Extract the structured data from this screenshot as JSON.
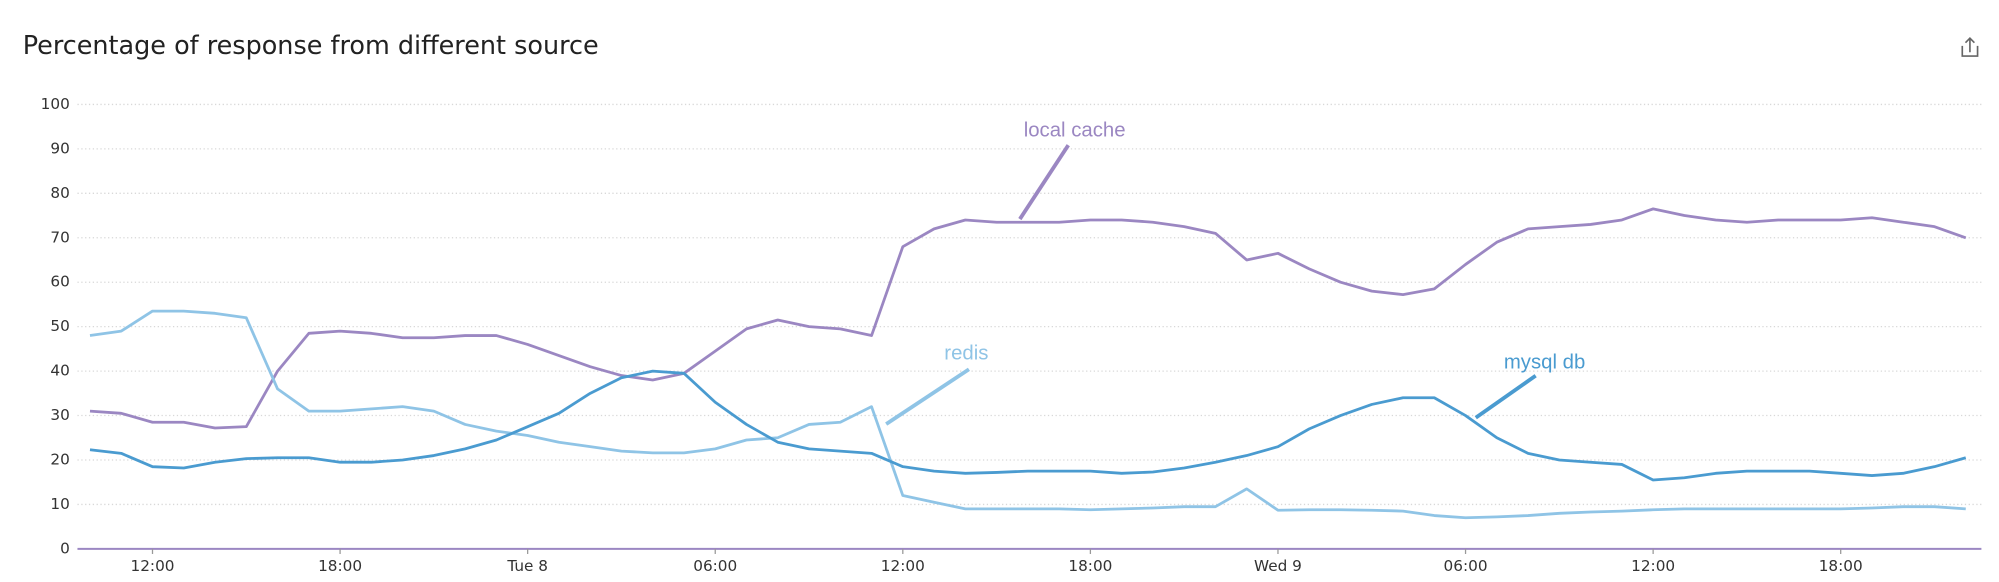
{
  "chart_data": {
    "type": "line",
    "title": "Percentage of response from different source",
    "x": [
      10,
      11,
      12,
      13,
      14,
      15,
      16,
      17,
      18,
      19,
      20,
      21,
      22,
      23,
      24,
      25,
      26,
      27,
      28,
      29,
      30,
      31,
      32,
      33,
      34,
      35,
      36,
      37,
      38,
      39,
      40,
      41,
      42,
      43,
      44,
      45,
      46,
      47,
      48,
      49,
      50,
      51,
      52,
      53,
      54,
      55,
      56,
      57,
      58,
      59,
      60,
      61,
      62,
      63,
      64,
      65,
      66,
      67,
      68,
      69,
      70
    ],
    "xlim": [
      9.6,
      70.5
    ],
    "xticks": [
      {
        "value": 12,
        "label": "12:00"
      },
      {
        "value": 18,
        "label": "18:00"
      },
      {
        "value": 24,
        "label": "Tue 8"
      },
      {
        "value": 30,
        "label": "06:00"
      },
      {
        "value": 36,
        "label": "12:00"
      },
      {
        "value": 42,
        "label": "18:00"
      },
      {
        "value": 48,
        "label": "Wed 9"
      },
      {
        "value": 54,
        "label": "06:00"
      },
      {
        "value": 60,
        "label": "12:00"
      },
      {
        "value": 66,
        "label": "18:00"
      }
    ],
    "ylim": [
      0,
      100
    ],
    "yticks": [
      0,
      10,
      20,
      30,
      40,
      50,
      60,
      70,
      80,
      90,
      100
    ],
    "grid": true,
    "series": [
      {
        "name": "local cache",
        "color": "#9b87c2",
        "values": [
          31,
          30.5,
          28.5,
          28.5,
          27.2,
          27.5,
          40,
          48.5,
          49,
          48.5,
          47.5,
          47.5,
          48,
          48,
          46,
          43.5,
          41,
          39,
          38,
          39.5,
          44.5,
          49.5,
          51.5,
          50,
          49.5,
          48,
          68,
          72,
          74,
          73.5,
          73.5,
          73.5,
          74,
          74,
          73.5,
          72.5,
          71,
          65,
          66.5,
          63,
          60,
          58,
          57.2,
          58.5,
          64,
          69,
          72,
          72.5,
          73,
          74,
          76.5,
          75,
          74,
          73.5,
          74,
          74,
          74,
          74.5,
          73.5,
          72.5,
          70
        ]
      },
      {
        "name": "redis",
        "color": "#8fc4e6",
        "values": [
          48,
          49,
          53.5,
          53.5,
          53,
          52,
          36,
          31,
          31,
          31.5,
          32,
          31,
          28,
          26.5,
          25.5,
          24,
          23,
          22,
          21.6,
          21.6,
          22.5,
          24.5,
          25,
          28,
          28.5,
          32,
          12,
          10.5,
          9,
          9,
          9,
          9,
          8.8,
          9,
          9.2,
          9.5,
          9.5,
          13.5,
          8.7,
          8.8,
          8.8,
          8.7,
          8.5,
          7.5,
          7,
          7.2,
          7.5,
          8,
          8.3,
          8.5,
          8.8,
          9,
          9,
          9,
          9,
          9,
          9,
          9.2,
          9.5,
          9.5,
          9
        ]
      },
      {
        "name": "mysql db",
        "color": "#4a9bd0",
        "values": [
          22.3,
          21.5,
          18.5,
          18.2,
          19.5,
          20.3,
          20.5,
          20.5,
          19.5,
          19.5,
          20,
          21,
          22.5,
          24.5,
          27.5,
          30.5,
          35,
          38.5,
          40,
          39.5,
          33,
          28,
          24,
          22.5,
          22,
          21.5,
          18.5,
          17.5,
          17,
          17.2,
          17.5,
          17.5,
          17.5,
          17,
          17.3,
          18.2,
          19.5,
          21,
          23,
          27,
          30,
          32.5,
          34,
          34,
          30,
          25,
          21.5,
          20,
          19.5,
          19,
          15.5,
          16,
          17,
          17.5,
          17.5,
          17.5,
          17,
          16.5,
          17,
          18.5,
          20.5
        ]
      }
    ]
  }
}
